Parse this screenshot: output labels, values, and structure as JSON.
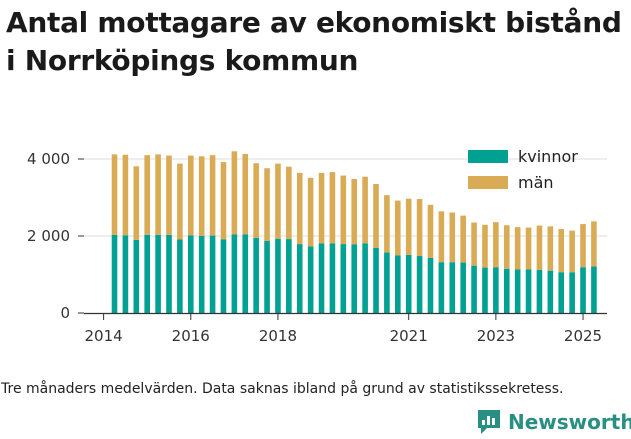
{
  "title_line1": "Antal mottagare av ekonomiskt bistånd",
  "title_line2": "i Norrköpings kommun",
  "footnote": "Tre månaders medelvärden. Data saknas ibland på grund av statistikssekretess.",
  "brand": "Newsworthy",
  "colors": {
    "kvinnor": "#00a092",
    "man": "#d9ab55",
    "axis": "#333333",
    "grid": "#dddddd",
    "brand": "#2a8f83"
  },
  "chart_data": {
    "type": "bar",
    "stacked": true,
    "title": "Antal mottagare av ekonomiskt bistånd i Norrköpings kommun",
    "ylim": [
      0,
      4500
    ],
    "xlim": [
      2013.55,
      2025.55
    ],
    "y_ticks": [
      0,
      2000,
      4000
    ],
    "y_tick_labels": [
      "0",
      "2 000",
      "4 000"
    ],
    "x_ticks": [
      2014,
      2016,
      2018,
      2021,
      2023,
      2025
    ],
    "x_tick_labels": [
      "2014",
      "2016",
      "2018",
      "2021",
      "2023",
      "2025"
    ],
    "legend": [
      "kvinnor",
      "män"
    ],
    "legend_position": "top-right",
    "x": [
      2014.25,
      2014.5,
      2014.75,
      2015.0,
      2015.25,
      2015.5,
      2015.75,
      2016.0,
      2016.25,
      2016.5,
      2016.75,
      2017.0,
      2017.25,
      2017.5,
      2017.75,
      2018.0,
      2018.25,
      2018.5,
      2018.75,
      2019.0,
      2019.25,
      2019.5,
      2019.75,
      2020.0,
      2020.25,
      2020.5,
      2020.75,
      2021.0,
      2021.25,
      2021.5,
      2021.75,
      2022.0,
      2022.25,
      2022.5,
      2022.75,
      2023.0,
      2023.25,
      2023.5,
      2023.75,
      2024.0,
      2024.25,
      2024.5,
      2024.75,
      2025.0,
      2025.25
    ],
    "series": [
      {
        "name": "kvinnor",
        "values": [
          2030,
          2020,
          1900,
          2030,
          2030,
          2030,
          1910,
          2020,
          2000,
          2010,
          1910,
          2040,
          2040,
          1950,
          1870,
          1930,
          1920,
          1790,
          1730,
          1810,
          1810,
          1790,
          1780,
          1810,
          1690,
          1570,
          1500,
          1510,
          1480,
          1430,
          1320,
          1320,
          1310,
          1230,
          1180,
          1190,
          1150,
          1130,
          1130,
          1120,
          1100,
          1060,
          1060,
          1190,
          1210
        ]
      },
      {
        "name": "män",
        "values": [
          2090,
          2090,
          1910,
          2070,
          2090,
          2060,
          1970,
          2070,
          2070,
          2090,
          2010,
          2160,
          2090,
          1940,
          1890,
          1950,
          1880,
          1850,
          1780,
          1830,
          1850,
          1780,
          1700,
          1730,
          1660,
          1490,
          1420,
          1460,
          1480,
          1380,
          1320,
          1290,
          1220,
          1120,
          1110,
          1170,
          1130,
          1100,
          1090,
          1150,
          1150,
          1120,
          1080,
          1120,
          1170
        ]
      }
    ]
  }
}
